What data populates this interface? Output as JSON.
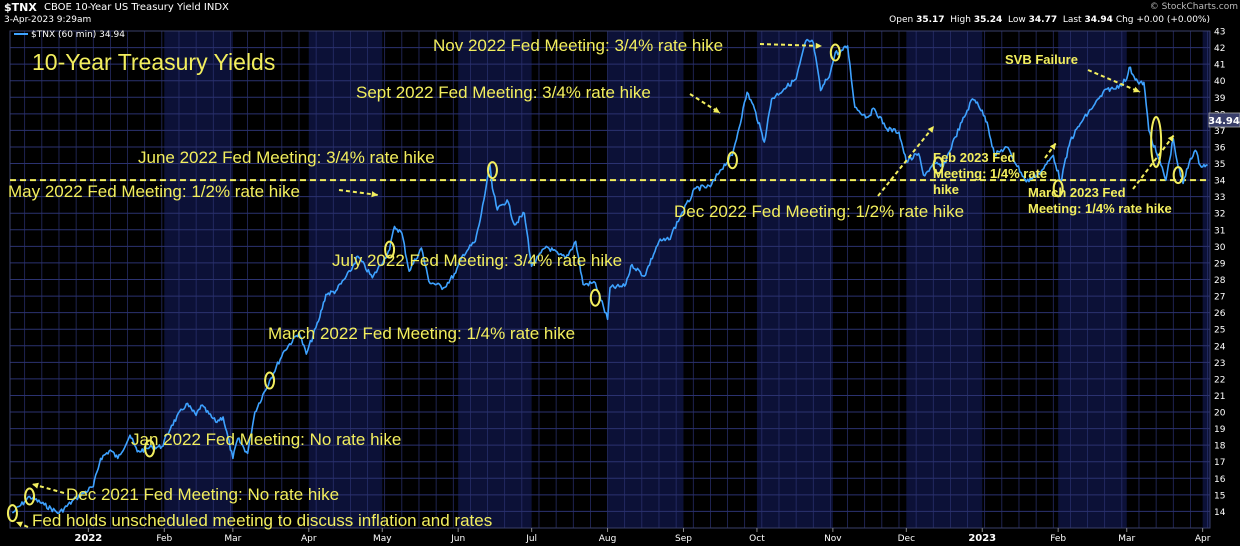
{
  "header": {
    "symbol": "$TNX",
    "name": "CBOE 10-Year US Treasury Yield INDX",
    "date": "3-Apr-2023 9:29am",
    "open_label": "Open",
    "open": "35.17",
    "high_label": "High",
    "high": "35.24",
    "low_label": "Low",
    "low": "34.77",
    "last_label": "Last",
    "last": "34.94",
    "chg_label": "Chg",
    "chg": "+0.00 (+0.00%)",
    "watermark": "© StockCharts.com"
  },
  "legend": {
    "label": "$TNX (60 min) 34.94"
  },
  "colors": {
    "line": "#3ea2ff",
    "annotation": "#f2ee5e",
    "grid": "#2b3270",
    "shade": "#0c1137",
    "background": "#000000",
    "ref_line": "#f2ee5e"
  },
  "chart_data": {
    "type": "line",
    "title": "10-Year Treasury Yields",
    "xlabel": "",
    "ylabel": "",
    "ylim": [
      13,
      43
    ],
    "y_ticks": [
      14,
      15,
      16,
      17,
      18,
      19,
      20,
      21,
      22,
      23,
      24,
      25,
      26,
      27,
      28,
      29,
      30,
      31,
      32,
      33,
      34,
      35,
      36,
      37,
      38,
      39,
      40,
      41,
      42,
      43
    ],
    "x_ticks": [
      {
        "label": "2022",
        "date": "2022-01-01",
        "bold": true
      },
      {
        "label": "Feb",
        "date": "2022-02-01"
      },
      {
        "label": "Mar",
        "date": "2022-03-01"
      },
      {
        "label": "Apr",
        "date": "2022-04-01"
      },
      {
        "label": "May",
        "date": "2022-05-01"
      },
      {
        "label": "Jun",
        "date": "2022-06-01"
      },
      {
        "label": "Jul",
        "date": "2022-07-01"
      },
      {
        "label": "Aug",
        "date": "2022-08-01"
      },
      {
        "label": "Sep",
        "date": "2022-09-01"
      },
      {
        "label": "Oct",
        "date": "2022-10-01"
      },
      {
        "label": "Nov",
        "date": "2022-11-01"
      },
      {
        "label": "Dec",
        "date": "2022-12-01"
      },
      {
        "label": "2023",
        "date": "2023-01-01",
        "bold": true
      },
      {
        "label": "Feb",
        "date": "2023-02-01"
      },
      {
        "label": "Mar",
        "date": "2023-03-01"
      },
      {
        "label": "Apr",
        "date": "2023-04-01"
      }
    ],
    "last_value_label": "34.94",
    "reference_line": 34.0,
    "grid": true,
    "series": [
      {
        "name": "$TNX",
        "points": [
          [
            "2021-12-01",
            13.9
          ],
          [
            "2021-12-06",
            14.6
          ],
          [
            "2021-12-08",
            14.9
          ],
          [
            "2021-12-14",
            14.4
          ],
          [
            "2021-12-20",
            13.9
          ],
          [
            "2021-12-27",
            14.8
          ],
          [
            "2022-01-03",
            15.5
          ],
          [
            "2022-01-06",
            17.2
          ],
          [
            "2022-01-10",
            17.7
          ],
          [
            "2022-01-13",
            17.2
          ],
          [
            "2022-01-18",
            18.6
          ],
          [
            "2022-01-21",
            17.6
          ],
          [
            "2022-01-25",
            17.8
          ],
          [
            "2022-01-27",
            17.9
          ],
          [
            "2022-01-31",
            17.9
          ],
          [
            "2022-02-04",
            19.2
          ],
          [
            "2022-02-10",
            20.5
          ],
          [
            "2022-02-14",
            19.8
          ],
          [
            "2022-02-16",
            20.4
          ],
          [
            "2022-02-22",
            19.4
          ],
          [
            "2022-02-25",
            19.7
          ],
          [
            "2022-03-01",
            17.2
          ],
          [
            "2022-03-03",
            18.4
          ],
          [
            "2022-03-07",
            17.5
          ],
          [
            "2022-03-10",
            20.0
          ],
          [
            "2022-03-16",
            21.9
          ],
          [
            "2022-03-22",
            23.7
          ],
          [
            "2022-03-28",
            24.8
          ],
          [
            "2022-03-31",
            23.5
          ],
          [
            "2022-04-05",
            25.5
          ],
          [
            "2022-04-08",
            27.1
          ],
          [
            "2022-04-12",
            27.3
          ],
          [
            "2022-04-18",
            28.5
          ],
          [
            "2022-04-21",
            29.4
          ],
          [
            "2022-04-27",
            28.1
          ],
          [
            "2022-05-04",
            29.8
          ],
          [
            "2022-05-06",
            31.2
          ],
          [
            "2022-05-09",
            30.8
          ],
          [
            "2022-05-12",
            28.5
          ],
          [
            "2022-05-17",
            29.9
          ],
          [
            "2022-05-20",
            27.9
          ],
          [
            "2022-05-26",
            27.5
          ],
          [
            "2022-05-31",
            28.4
          ],
          [
            "2022-06-03",
            29.5
          ],
          [
            "2022-06-08",
            30.3
          ],
          [
            "2022-06-10",
            31.6
          ],
          [
            "2022-06-14",
            34.9
          ],
          [
            "2022-06-15",
            33.5
          ],
          [
            "2022-06-17",
            32.2
          ],
          [
            "2022-06-21",
            32.8
          ],
          [
            "2022-06-24",
            31.3
          ],
          [
            "2022-06-28",
            32.0
          ],
          [
            "2022-07-01",
            28.8
          ],
          [
            "2022-07-07",
            30.0
          ],
          [
            "2022-07-12",
            29.5
          ],
          [
            "2022-07-15",
            29.3
          ],
          [
            "2022-07-19",
            30.3
          ],
          [
            "2022-07-22",
            27.7
          ],
          [
            "2022-07-27",
            27.8
          ],
          [
            "2022-08-01",
            25.6
          ],
          [
            "2022-08-02",
            27.5
          ],
          [
            "2022-08-08",
            27.6
          ],
          [
            "2022-08-11",
            28.9
          ],
          [
            "2022-08-16",
            28.2
          ],
          [
            "2022-08-22",
            30.3
          ],
          [
            "2022-08-26",
            30.4
          ],
          [
            "2022-08-31",
            31.9
          ],
          [
            "2022-09-06",
            33.5
          ],
          [
            "2022-09-12",
            33.6
          ],
          [
            "2022-09-14",
            34.1
          ],
          [
            "2022-09-16",
            34.6
          ],
          [
            "2022-09-21",
            35.5
          ],
          [
            "2022-09-27",
            39.3
          ],
          [
            "2022-09-30",
            38.3
          ],
          [
            "2022-10-04",
            36.3
          ],
          [
            "2022-10-07",
            38.9
          ],
          [
            "2022-10-12",
            39.5
          ],
          [
            "2022-10-17",
            40.1
          ],
          [
            "2022-10-21",
            42.4
          ],
          [
            "2022-10-24",
            42.3
          ],
          [
            "2022-10-27",
            39.4
          ],
          [
            "2022-10-31",
            40.5
          ],
          [
            "2022-11-02",
            41.7
          ],
          [
            "2022-11-04",
            41.7
          ],
          [
            "2022-11-07",
            42.1
          ],
          [
            "2022-11-10",
            38.4
          ],
          [
            "2022-11-15",
            37.8
          ],
          [
            "2022-11-18",
            38.3
          ],
          [
            "2022-11-23",
            37.1
          ],
          [
            "2022-11-28",
            36.9
          ],
          [
            "2022-12-01",
            35.1
          ],
          [
            "2022-12-06",
            35.6
          ],
          [
            "2022-12-08",
            34.3
          ],
          [
            "2022-12-13",
            35.0
          ],
          [
            "2022-12-16",
            34.8
          ],
          [
            "2022-12-21",
            36.6
          ],
          [
            "2022-12-28",
            38.9
          ],
          [
            "2022-12-30",
            38.7
          ],
          [
            "2023-01-03",
            37.5
          ],
          [
            "2023-01-06",
            35.5
          ],
          [
            "2023-01-11",
            36.0
          ],
          [
            "2023-01-19",
            33.9
          ],
          [
            "2023-01-25",
            34.5
          ],
          [
            "2023-01-30",
            35.5
          ],
          [
            "2023-02-02",
            33.9
          ],
          [
            "2023-02-06",
            36.4
          ],
          [
            "2023-02-10",
            37.4
          ],
          [
            "2023-02-16",
            38.6
          ],
          [
            "2023-02-21",
            39.5
          ],
          [
            "2023-02-24",
            39.5
          ],
          [
            "2023-03-01",
            40.1
          ],
          [
            "2023-03-02",
            40.8
          ],
          [
            "2023-03-06",
            39.8
          ],
          [
            "2023-03-08",
            39.9
          ],
          [
            "2023-03-10",
            37.0
          ],
          [
            "2023-03-13",
            35.7
          ],
          [
            "2023-03-15",
            34.9
          ],
          [
            "2023-03-17",
            34.0
          ],
          [
            "2023-03-20",
            36.5
          ],
          [
            "2023-03-22",
            34.8
          ],
          [
            "2023-03-24",
            33.8
          ],
          [
            "2023-03-27",
            35.3
          ],
          [
            "2023-03-29",
            35.8
          ],
          [
            "2023-03-31",
            34.9
          ],
          [
            "2023-04-03",
            34.9
          ]
        ]
      }
    ],
    "annotations": [
      {
        "text": "Fed holds unscheduled meeting to discuss inflation and rates",
        "size": 17
      },
      {
        "text": "Dec 2021 Fed Meeting: No rate hike",
        "size": 17
      },
      {
        "text": "Jan 2022 Fed Meeting: No rate hike",
        "size": 17
      },
      {
        "text": "March 2022 Fed Meeting: 1/4% rate hike",
        "size": 17
      },
      {
        "text": "May 2022 Fed Meeting: 1/2% rate hike",
        "size": 17
      },
      {
        "text": "June 2022 Fed Meeting: 3/4% rate hike",
        "size": 17
      },
      {
        "text": "July 2022 Fed Meeting: 3/4% rate hike",
        "size": 17
      },
      {
        "text": "Sept 2022 Fed Meeting: 3/4% rate hike",
        "size": 17
      },
      {
        "text": "Nov 2022 Fed Meeting: 3/4% rate hike",
        "size": 17
      },
      {
        "text": "Dec 2022 Fed Meeting: 1/2% rate hike",
        "size": 17
      },
      {
        "text": "SVB Failure",
        "size": 13,
        "bold": true
      },
      {
        "text": "Feb 2023 Fed",
        "size": 13,
        "bold": true
      },
      {
        "text": "Meeting: 1/4% rate",
        "size": 13,
        "bold": true
      },
      {
        "text": "hike",
        "size": 13,
        "bold": true
      },
      {
        "text": "March 2023 Fed",
        "size": 13,
        "bold": true
      },
      {
        "text": "Meeting: 1/4% rate hike",
        "size": 13,
        "bold": true
      }
    ],
    "markers": [
      {
        "date": "2021-12-01",
        "y": 13.9
      },
      {
        "date": "2021-12-08",
        "y": 14.9
      },
      {
        "date": "2022-01-26",
        "y": 17.8
      },
      {
        "date": "2022-03-16",
        "y": 21.9
      },
      {
        "date": "2022-05-04",
        "y": 29.8
      },
      {
        "date": "2022-06-15",
        "y": 34.6
      },
      {
        "date": "2022-07-27",
        "y": 26.9
      },
      {
        "date": "2022-09-21",
        "y": 35.2
      },
      {
        "date": "2022-11-02",
        "y": 41.7
      },
      {
        "date": "2022-12-14",
        "y": 34.9
      },
      {
        "date": "2023-02-01",
        "y": 33.5
      },
      {
        "date": "2023-03-13",
        "y": 36.3
      },
      {
        "date": "2023-03-22",
        "y": 34.3
      }
    ]
  }
}
